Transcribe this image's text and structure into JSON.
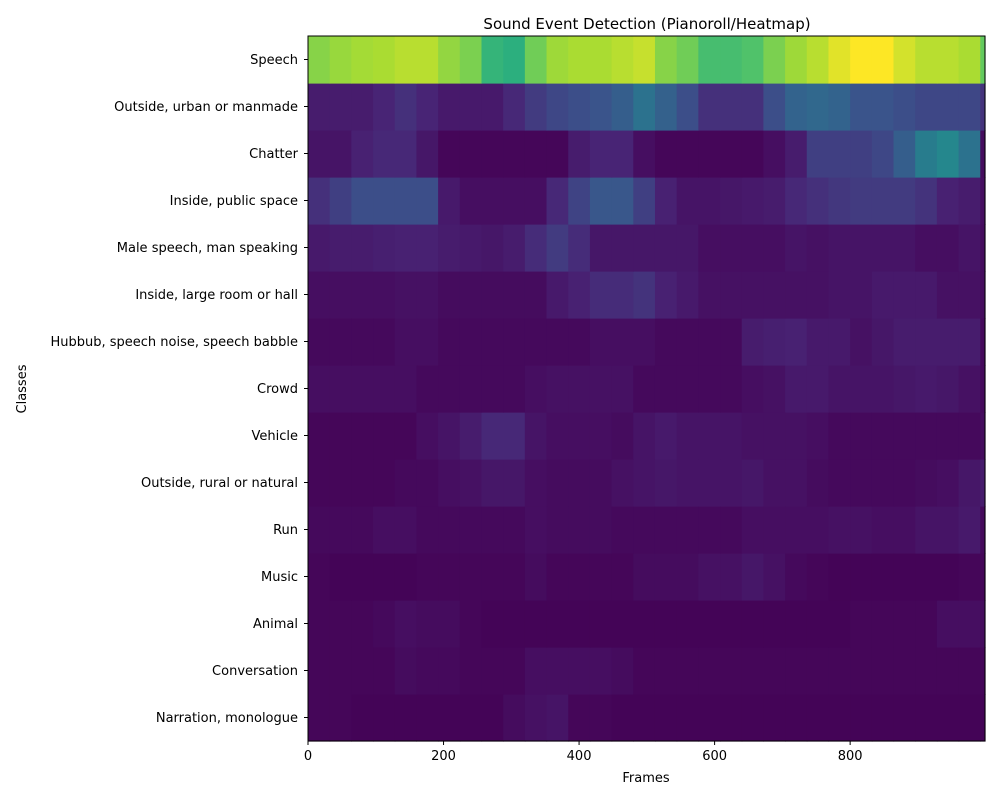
{
  "chart_data": {
    "type": "heatmap",
    "title": "Sound Event Detection (Pianoroll/Heatmap)",
    "xlabel": "Frames",
    "ylabel": "Classes",
    "xlim": [
      0,
      999
    ],
    "x_ticks": [
      0,
      200,
      400,
      600,
      800
    ],
    "colormap": "viridis",
    "value_range": [
      0,
      1
    ],
    "column_width_frames": 32,
    "classes": [
      "Narration, monologue",
      "Conversation",
      "Animal",
      "Music",
      "Run",
      "Outside, rural or natural",
      "Vehicle",
      "Crowd",
      "Hubbub, speech noise, speech babble",
      "Inside, large room or hall",
      "Male speech, man speaking",
      "Inside, public space",
      "Chatter",
      "Outside, urban or manmade",
      "Speech"
    ],
    "values": [
      [
        0.02,
        0.02,
        0.01,
        0.01,
        0.01,
        0.01,
        0.01,
        0.01,
        0.01,
        0.04,
        0.06,
        0.07,
        0.02,
        0.02,
        0.01,
        0.01,
        0.01,
        0.01,
        0.01,
        0.01,
        0.01,
        0.01,
        0.01,
        0.01,
        0.01,
        0.01,
        0.01,
        0.01,
        0.01,
        0.01,
        0.01,
        0.01
      ],
      [
        0.02,
        0.02,
        0.02,
        0.02,
        0.04,
        0.03,
        0.03,
        0.02,
        0.02,
        0.02,
        0.05,
        0.05,
        0.05,
        0.05,
        0.04,
        0.02,
        0.02,
        0.02,
        0.02,
        0.02,
        0.02,
        0.02,
        0.02,
        0.02,
        0.02,
        0.02,
        0.02,
        0.02,
        0.02,
        0.02,
        0.02,
        0.02
      ],
      [
        0.02,
        0.02,
        0.02,
        0.03,
        0.05,
        0.04,
        0.04,
        0.02,
        0.01,
        0.01,
        0.01,
        0.01,
        0.01,
        0.01,
        0.01,
        0.01,
        0.01,
        0.01,
        0.01,
        0.01,
        0.01,
        0.01,
        0.01,
        0.01,
        0.01,
        0.02,
        0.02,
        0.02,
        0.02,
        0.05,
        0.05,
        0.04
      ],
      [
        0.02,
        0.01,
        0.01,
        0.01,
        0.01,
        0.02,
        0.02,
        0.02,
        0.02,
        0.02,
        0.04,
        0.02,
        0.02,
        0.02,
        0.02,
        0.04,
        0.04,
        0.04,
        0.06,
        0.06,
        0.08,
        0.06,
        0.03,
        0.02,
        0.01,
        0.01,
        0.01,
        0.01,
        0.01,
        0.01,
        0.02,
        0.02
      ],
      [
        0.03,
        0.03,
        0.03,
        0.05,
        0.05,
        0.03,
        0.03,
        0.03,
        0.03,
        0.03,
        0.05,
        0.04,
        0.04,
        0.04,
        0.03,
        0.03,
        0.03,
        0.03,
        0.03,
        0.03,
        0.05,
        0.05,
        0.05,
        0.05,
        0.06,
        0.06,
        0.05,
        0.05,
        0.07,
        0.07,
        0.09,
        0.03
      ],
      [
        0.02,
        0.02,
        0.02,
        0.02,
        0.03,
        0.03,
        0.05,
        0.06,
        0.08,
        0.08,
        0.05,
        0.04,
        0.04,
        0.04,
        0.06,
        0.07,
        0.08,
        0.07,
        0.07,
        0.07,
        0.08,
        0.06,
        0.06,
        0.04,
        0.03,
        0.03,
        0.03,
        0.03,
        0.04,
        0.05,
        0.08,
        0.1
      ],
      [
        0.02,
        0.02,
        0.02,
        0.02,
        0.02,
        0.05,
        0.07,
        0.1,
        0.14,
        0.14,
        0.07,
        0.05,
        0.05,
        0.05,
        0.04,
        0.07,
        0.09,
        0.07,
        0.07,
        0.07,
        0.06,
        0.06,
        0.06,
        0.05,
        0.03,
        0.03,
        0.03,
        0.03,
        0.03,
        0.03,
        0.03,
        0.04
      ],
      [
        0.05,
        0.05,
        0.05,
        0.05,
        0.05,
        0.03,
        0.03,
        0.03,
        0.03,
        0.03,
        0.05,
        0.06,
        0.06,
        0.06,
        0.06,
        0.03,
        0.03,
        0.03,
        0.03,
        0.03,
        0.05,
        0.06,
        0.09,
        0.09,
        0.07,
        0.07,
        0.07,
        0.08,
        0.09,
        0.08,
        0.06,
        0.03
      ],
      [
        0.03,
        0.03,
        0.03,
        0.03,
        0.05,
        0.05,
        0.03,
        0.03,
        0.03,
        0.03,
        0.03,
        0.03,
        0.03,
        0.05,
        0.05,
        0.05,
        0.03,
        0.03,
        0.03,
        0.03,
        0.1,
        0.11,
        0.12,
        0.09,
        0.09,
        0.06,
        0.08,
        0.1,
        0.1,
        0.1,
        0.1,
        0.03
      ],
      [
        0.05,
        0.05,
        0.05,
        0.05,
        0.06,
        0.06,
        0.04,
        0.04,
        0.04,
        0.04,
        0.04,
        0.09,
        0.12,
        0.15,
        0.15,
        0.17,
        0.12,
        0.09,
        0.06,
        0.06,
        0.06,
        0.06,
        0.06,
        0.06,
        0.07,
        0.07,
        0.09,
        0.09,
        0.09,
        0.06,
        0.06,
        0.04
      ],
      [
        0.09,
        0.1,
        0.1,
        0.11,
        0.12,
        0.12,
        0.1,
        0.09,
        0.08,
        0.1,
        0.15,
        0.19,
        0.15,
        0.08,
        0.08,
        0.08,
        0.08,
        0.08,
        0.05,
        0.05,
        0.05,
        0.05,
        0.07,
        0.06,
        0.07,
        0.07,
        0.07,
        0.07,
        0.05,
        0.05,
        0.07,
        0.04
      ],
      [
        0.16,
        0.2,
        0.24,
        0.24,
        0.24,
        0.24,
        0.09,
        0.05,
        0.05,
        0.05,
        0.05,
        0.14,
        0.21,
        0.27,
        0.27,
        0.2,
        0.12,
        0.07,
        0.07,
        0.08,
        0.09,
        0.1,
        0.14,
        0.16,
        0.18,
        0.19,
        0.19,
        0.19,
        0.17,
        0.12,
        0.1,
        0.05
      ],
      [
        0.07,
        0.07,
        0.12,
        0.14,
        0.14,
        0.08,
        0.02,
        0.02,
        0.02,
        0.02,
        0.02,
        0.02,
        0.1,
        0.13,
        0.13,
        0.05,
        0.02,
        0.02,
        0.02,
        0.02,
        0.02,
        0.05,
        0.1,
        0.2,
        0.2,
        0.2,
        0.22,
        0.3,
        0.42,
        0.46,
        0.38,
        0.04
      ],
      [
        0.1,
        0.1,
        0.1,
        0.13,
        0.16,
        0.13,
        0.09,
        0.09,
        0.09,
        0.14,
        0.19,
        0.22,
        0.24,
        0.26,
        0.3,
        0.38,
        0.31,
        0.24,
        0.16,
        0.16,
        0.16,
        0.24,
        0.32,
        0.34,
        0.32,
        0.26,
        0.26,
        0.24,
        0.22,
        0.22,
        0.22,
        0.17
      ],
      [
        0.82,
        0.85,
        0.87,
        0.88,
        0.9,
        0.9,
        0.84,
        0.8,
        0.66,
        0.64,
        0.78,
        0.86,
        0.88,
        0.88,
        0.9,
        0.92,
        0.82,
        0.78,
        0.7,
        0.7,
        0.72,
        0.8,
        0.86,
        0.9,
        0.96,
        1.0,
        1.0,
        0.94,
        0.9,
        0.9,
        0.88,
        0.76
      ]
    ]
  }
}
